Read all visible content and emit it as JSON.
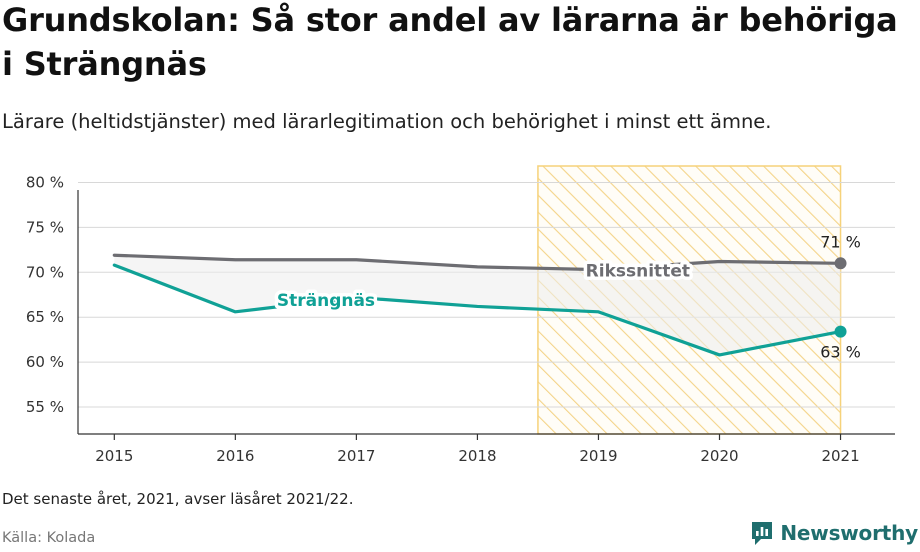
{
  "title": "Grundskolan: Så stor andel av lärarna är behöriga i Strängnäs",
  "subtitle": "Lärare (heltidstjänster) med lärarlegitimation och behörighet i minst ett ämne.",
  "footnote": "Det senaste året, 2021, avser läsåret 2021/22.",
  "source": "Källa: Kolada",
  "brand": {
    "name": "Newsworthy",
    "icon": "newsworthy-logo-icon",
    "color": "#1f6e6e"
  },
  "chart_data": {
    "type": "line",
    "categories": [
      "2015",
      "2016",
      "2017",
      "2018",
      "2019",
      "2020",
      "2021"
    ],
    "x": [
      2015,
      2016,
      2017,
      2018,
      2019,
      2020,
      2021
    ],
    "series": [
      {
        "name": "Rikssnittet",
        "values": [
          71.9,
          71.4,
          71.4,
          70.6,
          70.3,
          71.2,
          71.0
        ],
        "color": "#6d6d72",
        "end_label": "71 %"
      },
      {
        "name": "Strängnäs",
        "values": [
          70.8,
          65.6,
          67.2,
          66.2,
          65.6,
          60.8,
          63.4
        ],
        "color": "#10a196",
        "end_label": "63 %"
      }
    ],
    "yticks": [
      "55 %",
      "60 %",
      "65 %",
      "70 %",
      "75 %",
      "80 %"
    ],
    "ytick_values": [
      55,
      60,
      65,
      70,
      75,
      80
    ],
    "ylim": [
      52,
      82.5
    ],
    "xlim": [
      2014.7,
      2021.45
    ],
    "highlight": {
      "from": 2018.5,
      "to": 2021,
      "color": "#f6d27a"
    },
    "gap_fill": true,
    "grid": true,
    "legend": "inline",
    "xlabel": "",
    "ylabel": ""
  }
}
